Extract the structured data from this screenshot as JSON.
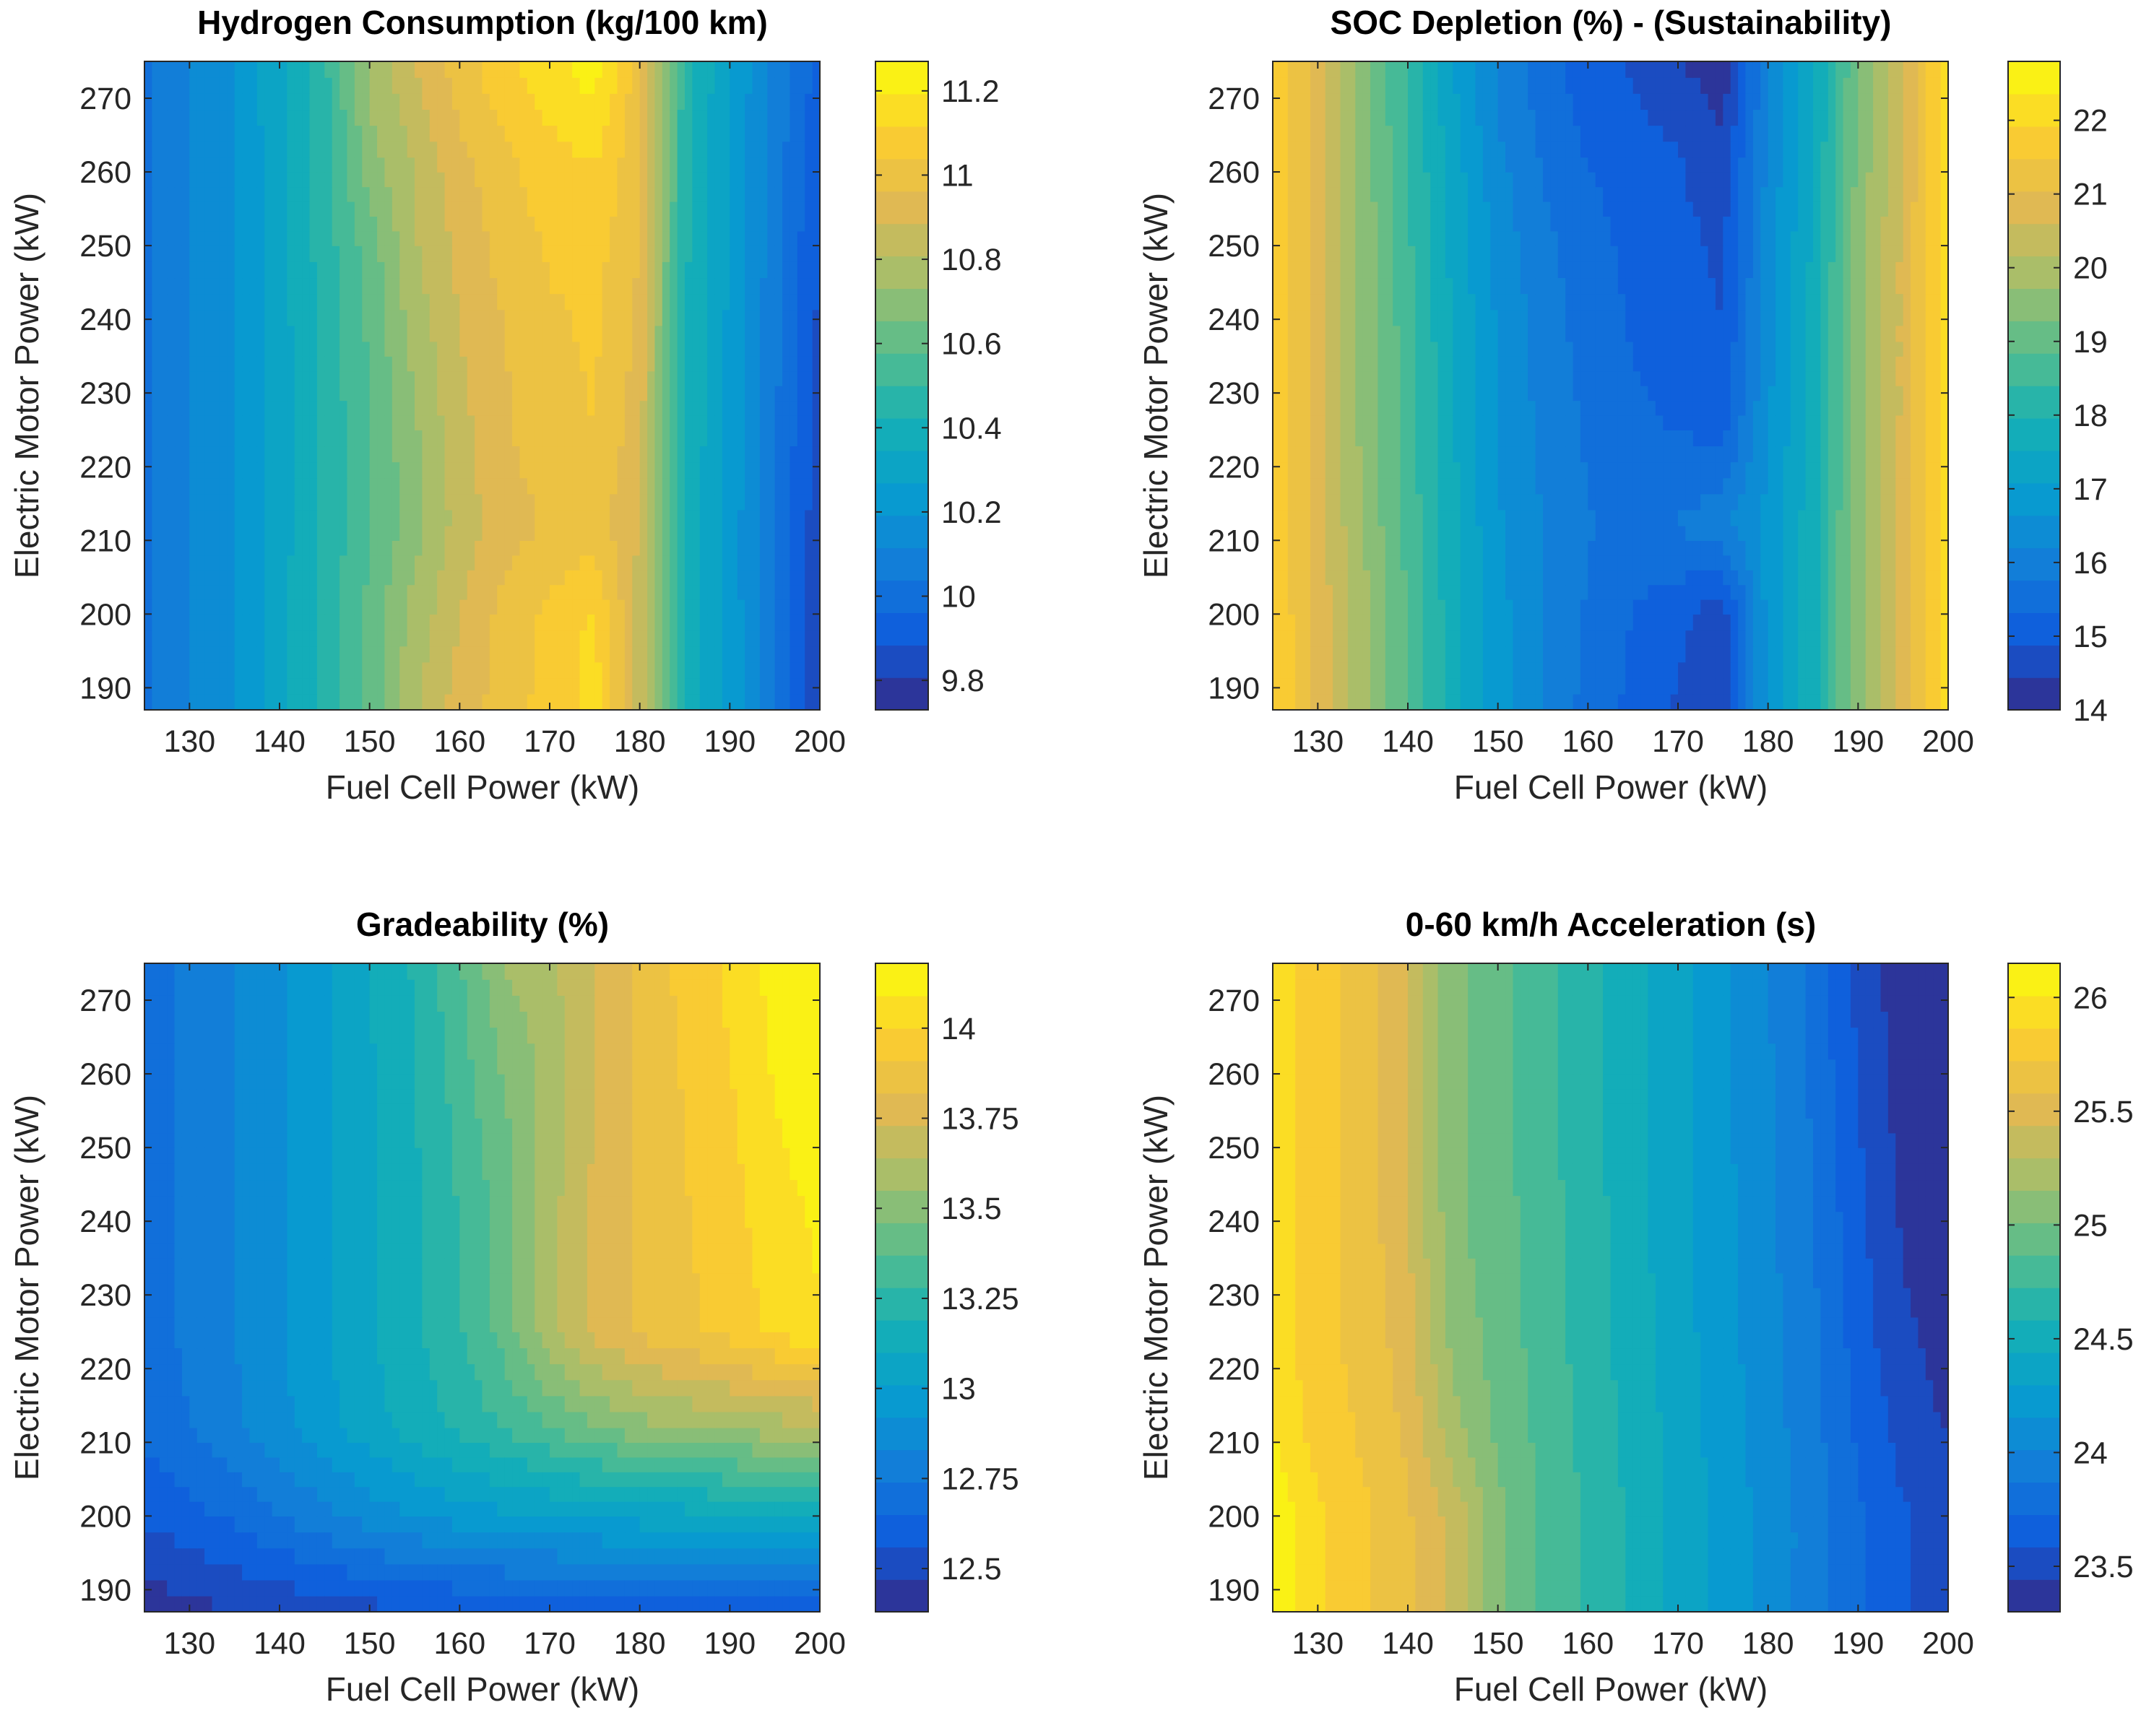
{
  "figure": {
    "colormap": "parula"
  },
  "chart_data": [
    {
      "type": "heatmap",
      "title": "Hydrogen Consumption (kg/100 km)",
      "xlabel": "Fuel Cell Power (kW)",
      "ylabel": "Electric Motor Power (kW)",
      "x": [
        125,
        130,
        135,
        140,
        145,
        150,
        155,
        160,
        165,
        170,
        175,
        180,
        185,
        190,
        195,
        200
      ],
      "y": [
        187,
        200,
        212,
        225,
        237,
        250,
        262,
        275
      ],
      "xlim": [
        125,
        200
      ],
      "ylim": [
        187,
        275
      ],
      "xticks": [
        "130",
        "140",
        "150",
        "160",
        "170",
        "180",
        "190",
        "200"
      ],
      "yticks": [
        "190",
        "200",
        "210",
        "220",
        "230",
        "240",
        "250",
        "260",
        "270"
      ],
      "colorbar": {
        "min": 9.73,
        "max": 11.27,
        "ticks": [
          "9.8",
          "10",
          "10.2",
          "10.4",
          "10.6",
          "10.8",
          "11",
          "11.2"
        ]
      },
      "z": [
        [
          10.03,
          10.11,
          10.19,
          10.32,
          10.45,
          10.6,
          10.8,
          10.92,
          11.0,
          11.07,
          11.15,
          10.86,
          10.4,
          10.24,
          10.05,
          9.8
        ],
        [
          10.03,
          10.11,
          10.19,
          10.32,
          10.45,
          10.6,
          10.76,
          10.88,
          10.99,
          11.06,
          11.13,
          10.85,
          10.4,
          10.24,
          10.05,
          9.82
        ],
        [
          10.03,
          10.11,
          10.19,
          10.31,
          10.44,
          10.57,
          10.7,
          10.84,
          10.93,
          10.97,
          11.0,
          10.88,
          10.4,
          10.24,
          10.04,
          9.83
        ],
        [
          10.03,
          10.11,
          10.19,
          10.31,
          10.44,
          10.57,
          10.72,
          10.86,
          10.95,
          11.01,
          11.04,
          10.92,
          10.42,
          10.25,
          10.05,
          9.84
        ],
        [
          10.03,
          10.11,
          10.19,
          10.31,
          10.45,
          10.59,
          10.76,
          10.88,
          10.96,
          11.02,
          11.05,
          10.94,
          10.43,
          10.25,
          10.06,
          9.86
        ],
        [
          10.03,
          10.11,
          10.19,
          10.32,
          10.46,
          10.61,
          10.8,
          10.91,
          10.99,
          11.05,
          11.07,
          10.96,
          10.44,
          10.26,
          10.07,
          9.88
        ],
        [
          10.03,
          10.11,
          10.19,
          10.32,
          10.47,
          10.7,
          10.82,
          10.94,
          11.02,
          11.09,
          11.12,
          10.98,
          10.45,
          10.26,
          10.08,
          9.9
        ],
        [
          10.03,
          10.11,
          10.2,
          10.33,
          10.48,
          10.75,
          10.88,
          11.01,
          11.09,
          11.17,
          11.24,
          10.99,
          10.46,
          10.27,
          10.09,
          9.93
        ]
      ]
    },
    {
      "type": "heatmap",
      "title": "SOC Depletion (%) - (Sustainability)",
      "xlabel": "Fuel Cell Power (kW)",
      "ylabel": "Electric Motor Power (kW)",
      "x": [
        125,
        130,
        135,
        140,
        145,
        150,
        155,
        160,
        165,
        170,
        175,
        180,
        185,
        190,
        195,
        200
      ],
      "y": [
        187,
        200,
        212,
        225,
        237,
        250,
        262,
        275
      ],
      "xlim": [
        125,
        200
      ],
      "ylim": [
        187,
        275
      ],
      "xticks": [
        "130",
        "140",
        "150",
        "160",
        "170",
        "180",
        "190",
        "200"
      ],
      "yticks": [
        "190",
        "200",
        "210",
        "220",
        "230",
        "240",
        "250",
        "260",
        "270"
      ],
      "colorbar": {
        "min": 14,
        "max": 22.8,
        "ticks": [
          "14",
          "15",
          "16",
          "17",
          "18",
          "19",
          "20",
          "21",
          "22"
        ]
      },
      "z": [
        [
          21.9,
          20.9,
          19.9,
          18.8,
          17.7,
          16.8,
          16.2,
          15.6,
          15.2,
          14.8,
          14.5,
          16.8,
          17.8,
          19.6,
          20.8,
          22.2
        ],
        [
          21.9,
          20.9,
          19.9,
          18.8,
          17.7,
          16.8,
          16.2,
          15.7,
          15.3,
          15.0,
          14.6,
          16.8,
          17.8,
          19.6,
          20.8,
          22.2
        ],
        [
          21.9,
          20.8,
          19.7,
          18.7,
          17.6,
          16.7,
          16.2,
          15.8,
          15.6,
          15.8,
          16.1,
          16.8,
          17.8,
          19.6,
          20.8,
          22.2
        ],
        [
          21.9,
          20.8,
          19.6,
          18.6,
          17.6,
          16.6,
          16.1,
          15.7,
          15.4,
          15.3,
          15.2,
          16.6,
          17.7,
          19.5,
          20.7,
          22.2
        ],
        [
          21.9,
          20.8,
          19.6,
          18.6,
          17.5,
          16.6,
          16.0,
          15.6,
          15.3,
          15.1,
          14.9,
          16.5,
          17.7,
          19.5,
          20.7,
          22.2
        ],
        [
          21.9,
          20.8,
          19.6,
          18.5,
          17.4,
          16.5,
          15.9,
          15.5,
          15.2,
          15.0,
          14.8,
          16.4,
          17.6,
          19.5,
          20.7,
          22.2
        ],
        [
          21.9,
          20.8,
          19.5,
          18.4,
          17.3,
          16.3,
          15.7,
          15.3,
          15.1,
          14.9,
          14.6,
          16.3,
          17.5,
          19.4,
          20.6,
          22.2
        ],
        [
          21.9,
          20.8,
          19.5,
          18.3,
          17.1,
          16.1,
          15.5,
          15.1,
          14.8,
          14.5,
          14.1,
          16.2,
          17.4,
          19.3,
          20.6,
          22.2
        ]
      ]
    },
    {
      "type": "heatmap",
      "title": "Gradeability (%)",
      "xlabel": "Fuel Cell Power (kW)",
      "ylabel": "Electric Motor Power (kW)",
      "x": [
        125,
        130,
        135,
        140,
        145,
        150,
        155,
        160,
        165,
        170,
        175,
        180,
        185,
        190,
        195,
        200
      ],
      "y": [
        187,
        200,
        212,
        225,
        237,
        250,
        262,
        275
      ],
      "xlim": [
        125,
        200
      ],
      "ylim": [
        187,
        275
      ],
      "xticks": [
        "130",
        "140",
        "150",
        "160",
        "170",
        "180",
        "190",
        "200"
      ],
      "yticks": [
        "190",
        "200",
        "210",
        "220",
        "230",
        "240",
        "250",
        "260",
        "270"
      ],
      "colorbar": {
        "min": 12.38,
        "max": 14.18,
        "ticks": [
          "12.5",
          "12.75",
          "13",
          "13.25",
          "13.5",
          "13.75",
          "14"
        ]
      },
      "z": [
        [
          12.42,
          12.44,
          12.47,
          12.49,
          12.51,
          12.53,
          12.54,
          12.55,
          12.56,
          12.57,
          12.58,
          12.58,
          12.59,
          12.59,
          12.6,
          12.6
        ],
        [
          12.57,
          12.62,
          12.67,
          12.74,
          12.8,
          12.87,
          12.92,
          12.96,
          12.99,
          13.01,
          13.03,
          13.05,
          13.06,
          13.07,
          13.08,
          13.1
        ],
        [
          12.68,
          12.74,
          12.81,
          12.89,
          12.98,
          13.06,
          13.14,
          13.21,
          13.29,
          13.37,
          13.45,
          13.52,
          13.55,
          13.58,
          13.6,
          13.62
        ],
        [
          12.7,
          12.76,
          12.83,
          12.91,
          13.0,
          13.09,
          13.17,
          13.27,
          13.41,
          13.62,
          13.76,
          13.84,
          13.89,
          13.94,
          14.02,
          14.08
        ],
        [
          12.7,
          12.76,
          12.83,
          12.91,
          13.0,
          13.09,
          13.17,
          13.28,
          13.41,
          13.61,
          13.75,
          13.84,
          13.9,
          13.96,
          14.05,
          14.1
        ],
        [
          12.7,
          12.76,
          12.83,
          12.91,
          13.0,
          13.09,
          13.18,
          13.3,
          13.43,
          13.6,
          13.74,
          13.84,
          13.91,
          13.98,
          14.08,
          14.12
        ],
        [
          12.7,
          12.76,
          12.83,
          12.91,
          13.0,
          13.09,
          13.18,
          13.33,
          13.48,
          13.59,
          13.73,
          13.83,
          13.92,
          14.0,
          14.1,
          14.14
        ],
        [
          12.7,
          12.76,
          12.83,
          12.91,
          13.0,
          13.1,
          13.2,
          13.36,
          13.55,
          13.62,
          13.74,
          13.84,
          13.94,
          14.02,
          14.12,
          14.16
        ]
      ]
    },
    {
      "type": "heatmap",
      "title": "0-60 km/h Acceleration (s)",
      "xlabel": "Fuel Cell Power (kW)",
      "ylabel": "Electric Motor Power (kW)",
      "x": [
        125,
        130,
        135,
        140,
        145,
        150,
        155,
        160,
        165,
        170,
        175,
        180,
        185,
        190,
        195,
        200
      ],
      "y": [
        187,
        200,
        212,
        225,
        237,
        250,
        262,
        275
      ],
      "xlim": [
        125,
        200
      ],
      "ylim": [
        187,
        275
      ],
      "xticks": [
        "130",
        "140",
        "150",
        "160",
        "170",
        "180",
        "190",
        "200"
      ],
      "yticks": [
        "190",
        "200",
        "210",
        "220",
        "230",
        "240",
        "250",
        "260",
        "270"
      ],
      "colorbar": {
        "min": 23.3,
        "max": 26.15,
        "ticks": [
          "23.5",
          "24",
          "24.5",
          "25",
          "25.5",
          "26"
        ]
      },
      "z": [
        [
          26.1,
          25.9,
          25.75,
          25.6,
          25.4,
          25.05,
          24.85,
          24.7,
          24.55,
          24.4,
          24.25,
          24.1,
          23.95,
          23.75,
          23.6,
          23.5
        ],
        [
          26.1,
          25.9,
          25.75,
          25.6,
          25.4,
          25.05,
          24.85,
          24.7,
          24.55,
          24.4,
          24.25,
          24.1,
          23.95,
          23.75,
          23.6,
          23.5
        ],
        [
          26.0,
          25.8,
          25.7,
          25.55,
          25.2,
          24.98,
          24.82,
          24.68,
          24.53,
          24.38,
          24.23,
          24.08,
          23.92,
          23.7,
          23.53,
          23.43
        ],
        [
          25.95,
          25.78,
          25.67,
          25.5,
          25.1,
          24.95,
          24.8,
          24.66,
          24.51,
          24.36,
          24.21,
          24.06,
          23.9,
          23.66,
          23.47,
          23.38
        ],
        [
          25.95,
          25.78,
          25.67,
          25.45,
          25.06,
          24.93,
          24.79,
          24.65,
          24.5,
          24.35,
          24.2,
          24.05,
          23.88,
          23.63,
          23.43,
          23.36
        ],
        [
          25.95,
          25.78,
          25.67,
          25.42,
          25.05,
          24.92,
          24.78,
          24.64,
          24.49,
          24.34,
          24.19,
          24.04,
          23.86,
          23.6,
          23.4,
          23.33
        ],
        [
          25.95,
          25.78,
          25.67,
          25.42,
          25.05,
          24.92,
          24.78,
          24.64,
          24.49,
          24.34,
          24.19,
          24.03,
          23.84,
          23.57,
          23.37,
          23.31
        ],
        [
          25.95,
          25.78,
          25.67,
          25.42,
          25.05,
          24.92,
          24.78,
          24.64,
          24.49,
          24.34,
          24.19,
          24.02,
          23.82,
          23.55,
          23.35,
          23.3
        ]
      ]
    }
  ]
}
